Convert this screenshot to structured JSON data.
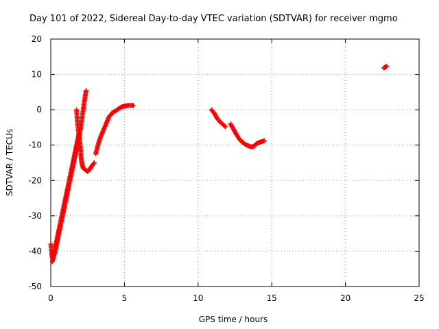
{
  "chart_data": {
    "type": "scatter",
    "title": "Day 101 of 2022, Sidereal Day-to-day VTEC variation (SDTVAR) for receiver mgmo",
    "xlabel": "GPS time / hours",
    "ylabel": "SDTVAR / TECUs",
    "xlim": [
      0,
      25
    ],
    "ylim": [
      -50,
      20
    ],
    "xticks": [
      0,
      5,
      10,
      15,
      20,
      25
    ],
    "yticks": [
      -50,
      -40,
      -30,
      -20,
      -10,
      0,
      10,
      20
    ],
    "grid": true,
    "marker": "+",
    "series": [
      {
        "name": "SDTVAR",
        "color": "#ff0000",
        "segments": [
          [
            [
              0.0,
              -38
            ],
            [
              0.1,
              -42
            ],
            [
              0.2,
              -41
            ],
            [
              0.35,
              -38
            ],
            [
              0.5,
              -35
            ],
            [
              0.65,
              -32
            ],
            [
              0.8,
              -29
            ],
            [
              0.95,
              -26
            ],
            [
              1.1,
              -23
            ],
            [
              1.25,
              -20
            ],
            [
              1.4,
              -17
            ],
            [
              1.55,
              -14
            ],
            [
              1.7,
              -11
            ],
            [
              1.8,
              -9
            ],
            [
              1.9,
              -7
            ]
          ],
          [
            [
              0.1,
              -43
            ],
            [
              0.3,
              -40
            ],
            [
              0.5,
              -36
            ],
            [
              0.7,
              -32
            ],
            [
              0.9,
              -28
            ],
            [
              1.1,
              -24
            ],
            [
              1.3,
              -20
            ],
            [
              1.5,
              -16
            ],
            [
              1.7,
              -12
            ],
            [
              1.85,
              -9
            ],
            [
              2.0,
              -6
            ],
            [
              2.1,
              -3
            ],
            [
              2.2,
              0
            ],
            [
              2.3,
              3
            ],
            [
              2.4,
              5.5
            ]
          ],
          [
            [
              1.75,
              0
            ],
            [
              1.8,
              -3
            ],
            [
              1.9,
              -7
            ],
            [
              2.0,
              -10
            ],
            [
              2.05,
              -13
            ],
            [
              2.1,
              -15
            ],
            [
              2.2,
              -16.5
            ],
            [
              2.35,
              -17
            ],
            [
              2.5,
              -17.5
            ],
            [
              2.7,
              -16.5
            ],
            [
              2.85,
              -15.5
            ],
            [
              2.95,
              -15
            ]
          ],
          [
            [
              3.05,
              -12.5
            ],
            [
              3.2,
              -10
            ],
            [
              3.35,
              -8
            ],
            [
              3.55,
              -6
            ],
            [
              3.75,
              -4
            ],
            [
              3.95,
              -2
            ],
            [
              4.15,
              -1
            ],
            [
              4.3,
              -0.5
            ],
            [
              4.45,
              -0.2
            ],
            [
              4.6,
              0.3
            ],
            [
              4.8,
              0.8
            ],
            [
              5.0,
              1.0
            ],
            [
              5.2,
              1.2
            ],
            [
              5.45,
              1.3
            ],
            [
              5.6,
              1.2
            ]
          ],
          [
            [
              10.9,
              0
            ],
            [
              11.1,
              -1
            ],
            [
              11.3,
              -2.5
            ],
            [
              11.5,
              -3.5
            ],
            [
              11.7,
              -4.2
            ],
            [
              11.85,
              -4.8
            ]
          ],
          [
            [
              12.2,
              -4
            ],
            [
              12.4,
              -5.5
            ],
            [
              12.6,
              -7
            ],
            [
              12.8,
              -8.3
            ],
            [
              13.0,
              -9.2
            ],
            [
              13.2,
              -9.8
            ],
            [
              13.4,
              -10.2
            ],
            [
              13.6,
              -10.5
            ],
            [
              13.8,
              -10.3
            ],
            [
              13.95,
              -9.6
            ],
            [
              14.1,
              -9.3
            ],
            [
              14.3,
              -9
            ],
            [
              14.5,
              -8.8
            ]
          ],
          [
            [
              22.6,
              11.8
            ],
            [
              22.7,
              12.1
            ],
            [
              22.8,
              12.3
            ]
          ]
        ]
      }
    ]
  }
}
